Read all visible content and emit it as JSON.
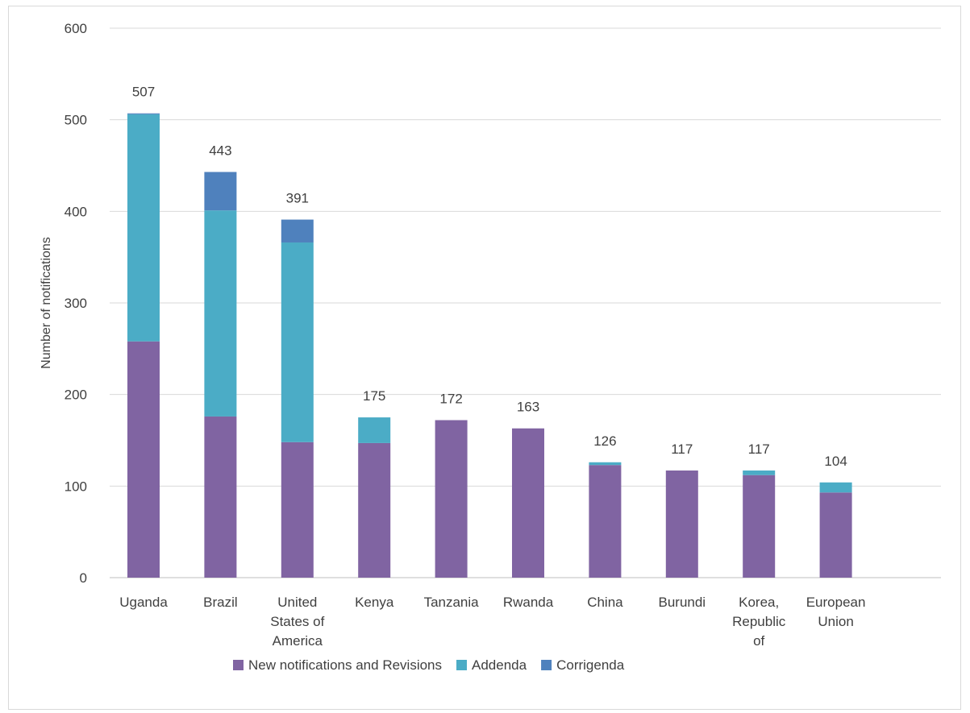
{
  "chart_data": {
    "type": "bar",
    "stacked": true,
    "title": "",
    "xlabel": "",
    "ylabel": "Number of notifications",
    "ylim": [
      0,
      600
    ],
    "yticks": [
      0,
      100,
      200,
      300,
      400,
      500,
      600
    ],
    "grid": true,
    "legend_position": "bottom",
    "categories": [
      [
        "Uganda"
      ],
      [
        "Brazil"
      ],
      [
        "United",
        "States of",
        "America"
      ],
      [
        "Kenya"
      ],
      [
        "Tanzania"
      ],
      [
        "Rwanda"
      ],
      [
        "China"
      ],
      [
        "Burundi"
      ],
      [
        "Korea,",
        "Republic",
        "of"
      ],
      [
        "European",
        "Union"
      ]
    ],
    "series": [
      {
        "name": "New notifications and Revisions",
        "color": "#8064a2",
        "values": [
          258,
          176,
          148,
          147,
          172,
          163,
          123,
          117,
          112,
          93
        ]
      },
      {
        "name": "Addenda",
        "color": "#4bacc6",
        "values": [
          248,
          225,
          218,
          28,
          0,
          0,
          3,
          0,
          5,
          11
        ]
      },
      {
        "name": "Corrigenda",
        "color": "#4f81bd",
        "values": [
          1,
          42,
          25,
          0,
          0,
          0,
          0,
          0,
          0,
          0
        ]
      }
    ],
    "totals": [
      507,
      443,
      391,
      175,
      172,
      163,
      126,
      117,
      117,
      104
    ]
  }
}
